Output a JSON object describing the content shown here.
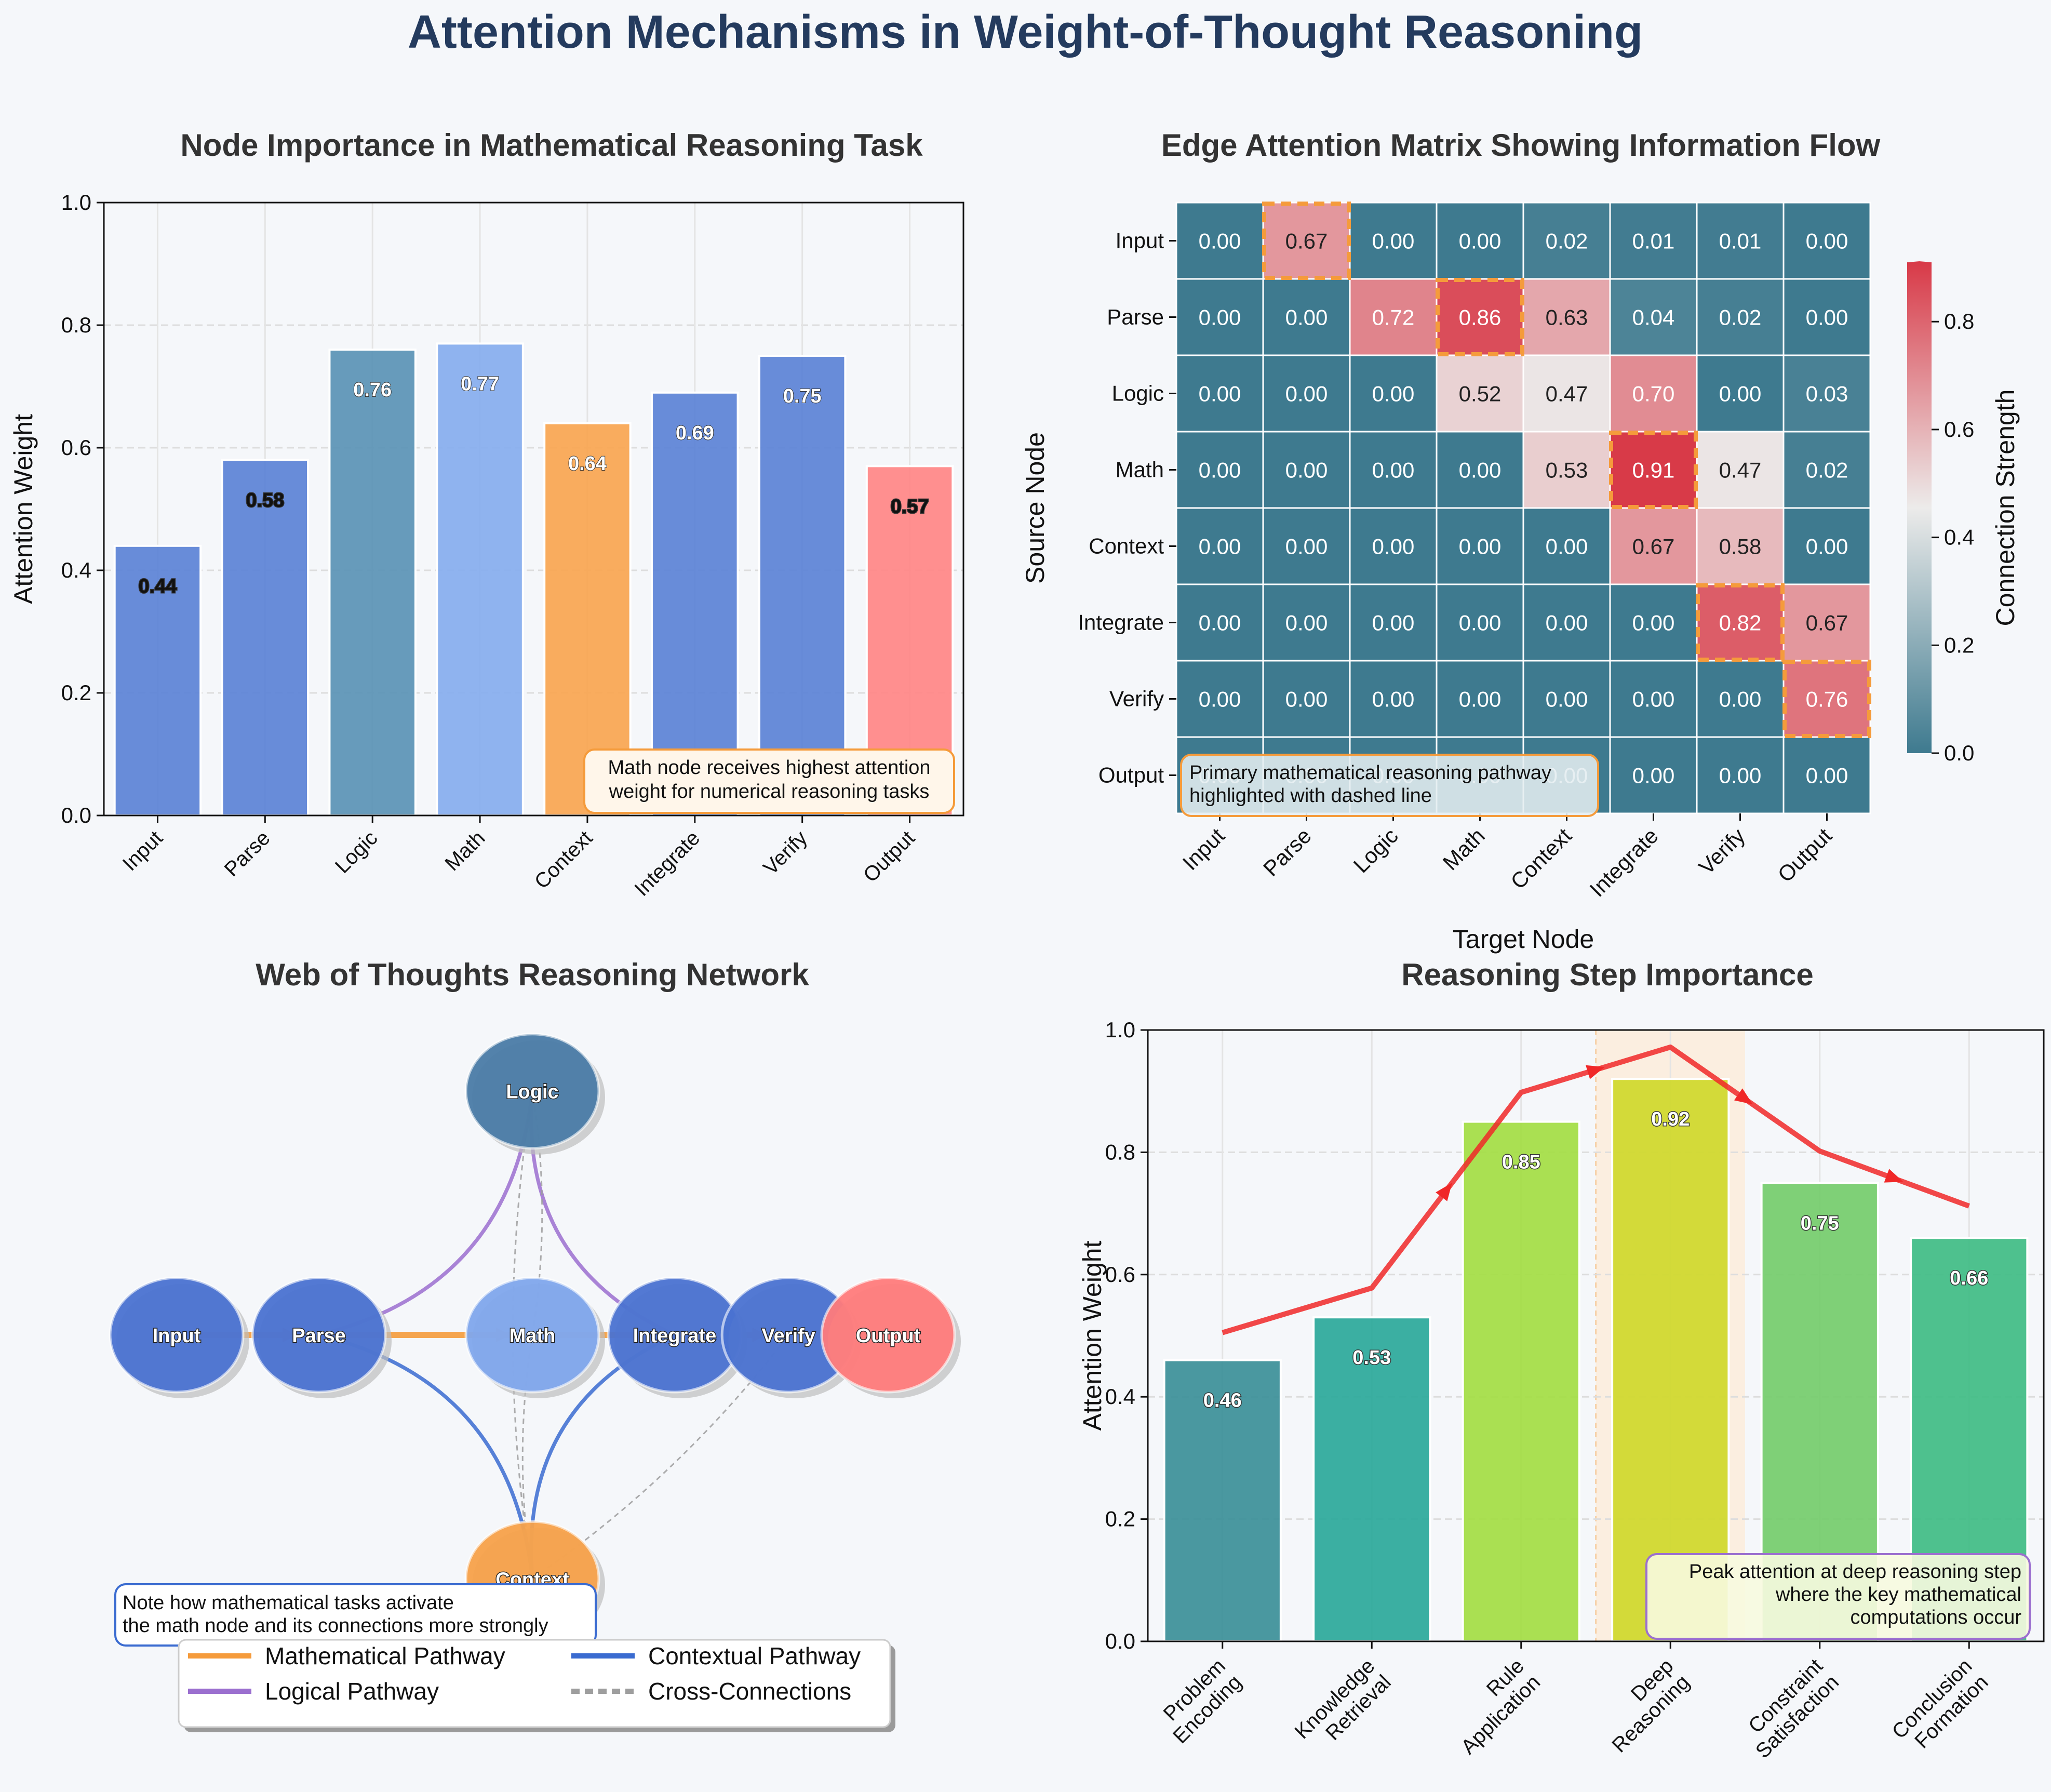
{
  "suptitle": "Attention Mechanisms in Weight-of-Thought Reasoning",
  "colors": {
    "title": "#243b5e",
    "subtitle": "#333333",
    "logic_node": "#4a7ba6",
    "math_node": "#7fa7ec",
    "context_node": "#f7a14a",
    "output_node": "#ff7b7b",
    "blue_node": "#4a72d1",
    "math_path": "#f59b3b",
    "logic_path": "#9b6fcf",
    "context_path": "#3a6bd0",
    "cross_path": "#9e9e9e",
    "trend_line": "#f02828",
    "heat_low": "#3e7a8f",
    "heat_mid": "#ecebea",
    "heat_high": "#d83a48",
    "highlight": "#f59b3b"
  },
  "chart_data": [
    {
      "type": "bar",
      "title": "Node Importance in Mathematical Reasoning Task",
      "categories": [
        "Input",
        "Parse",
        "Logic",
        "Math",
        "Context",
        "Integrate",
        "Verify",
        "Output"
      ],
      "values": [
        0.44,
        0.58,
        0.76,
        0.77,
        0.64,
        0.69,
        0.75,
        0.57
      ],
      "value_labels": [
        "0.44",
        "0.58",
        "0.76",
        "0.77",
        "0.64",
        "0.69",
        "0.75",
        "0.57"
      ],
      "colors": [
        "#5b82d6",
        "#5b82d6",
        "#5a92b5",
        "#86adee",
        "#f9a550",
        "#5b82d6",
        "#5b82d6",
        "#ff8585"
      ],
      "ylabel": "Attention Weight",
      "ylim": [
        0,
        1.0
      ],
      "yticks": [
        "0.0",
        "0.2",
        "0.4",
        "0.6",
        "0.8",
        "1.0"
      ],
      "annotation": "Math node receives highest attention\nweight for numerical reasoning tasks",
      "grid": true
    },
    {
      "type": "heatmap",
      "title": "Edge Attention Matrix Showing Information Flow",
      "xlabel": "Target Node",
      "ylabel": "Source Node",
      "rows": [
        "Input",
        "Parse",
        "Logic",
        "Math",
        "Context",
        "Integrate",
        "Verify",
        "Output"
      ],
      "cols": [
        "Input",
        "Parse",
        "Logic",
        "Math",
        "Context",
        "Integrate",
        "Verify",
        "Output"
      ],
      "values": [
        [
          0.0,
          0.67,
          0.0,
          0.0,
          0.02,
          0.01,
          0.01,
          0.0
        ],
        [
          0.0,
          0.0,
          0.72,
          0.86,
          0.63,
          0.04,
          0.02,
          0.0
        ],
        [
          0.0,
          0.0,
          0.0,
          0.52,
          0.47,
          0.7,
          0.0,
          0.03
        ],
        [
          0.0,
          0.0,
          0.0,
          0.0,
          0.53,
          0.91,
          0.47,
          0.02
        ],
        [
          0.0,
          0.0,
          0.0,
          0.0,
          0.0,
          0.67,
          0.58,
          0.0
        ],
        [
          0.0,
          0.0,
          0.0,
          0.0,
          0.0,
          0.0,
          0.82,
          0.67
        ],
        [
          0.0,
          0.0,
          0.0,
          0.0,
          0.0,
          0.0,
          0.0,
          0.76
        ],
        [
          0.0,
          0.0,
          0.0,
          0.0,
          0.0,
          0.0,
          0.0,
          0.0
        ]
      ],
      "highlighted_cells": [
        [
          0,
          1
        ],
        [
          1,
          3
        ],
        [
          3,
          5
        ],
        [
          5,
          6
        ],
        [
          6,
          7
        ]
      ],
      "colorbar_label": "Connection Strength",
      "colorbar_range": [
        0,
        0.91
      ],
      "colorbar_ticks": [
        "0.0",
        "0.2",
        "0.4",
        "0.6",
        "0.8"
      ],
      "annotation": "Primary mathematical reasoning pathway\nhighlighted with dashed line"
    },
    {
      "type": "network",
      "title": "Web of Thoughts Reasoning Network",
      "nodes": [
        {
          "name": "Input",
          "x": 0,
          "y": 0,
          "color": "#4a72d1"
        },
        {
          "name": "Parse",
          "x": 1,
          "y": 0,
          "color": "#4a72d1"
        },
        {
          "name": "Logic",
          "x": 2.5,
          "y": 1.3,
          "color": "#4a7ba6"
        },
        {
          "name": "Math",
          "x": 2.5,
          "y": 0,
          "color": "#7fa7ec"
        },
        {
          "name": "Context",
          "x": 2.5,
          "y": -1.3,
          "color": "#f7a14a"
        },
        {
          "name": "Integrate",
          "x": 3.5,
          "y": 0,
          "color": "#4a72d1"
        },
        {
          "name": "Verify",
          "x": 4.3,
          "y": 0,
          "color": "#4a72d1"
        },
        {
          "name": "Output",
          "x": 5,
          "y": 0,
          "color": "#ff7b7b"
        }
      ],
      "edges": [
        {
          "from": "Input",
          "to": "Parse",
          "type": "math"
        },
        {
          "from": "Parse",
          "to": "Math",
          "type": "math"
        },
        {
          "from": "Math",
          "to": "Integrate",
          "type": "math"
        },
        {
          "from": "Integrate",
          "to": "Verify",
          "type": "math"
        },
        {
          "from": "Verify",
          "to": "Output",
          "type": "math"
        },
        {
          "from": "Parse",
          "to": "Logic",
          "type": "logic"
        },
        {
          "from": "Logic",
          "to": "Integrate",
          "type": "logic"
        },
        {
          "from": "Parse",
          "to": "Context",
          "type": "context"
        },
        {
          "from": "Context",
          "to": "Integrate",
          "type": "context"
        },
        {
          "from": "Context",
          "to": "Verify",
          "type": "cross"
        },
        {
          "from": "Logic",
          "to": "Context",
          "type": "cross"
        },
        {
          "from": "Math",
          "to": "Logic",
          "type": "cross"
        },
        {
          "from": "Math",
          "to": "Context",
          "type": "cross"
        }
      ],
      "annotation": "Note how mathematical tasks activate\nthe math node and its connections more strongly",
      "legend": [
        "Mathematical Pathway",
        "Logical Pathway",
        "Contextual Pathway",
        "Cross-Connections"
      ]
    },
    {
      "type": "bar",
      "title": "Reasoning Step Importance",
      "categories": [
        "Problem\nEncoding",
        "Knowledge\nRetrieval",
        "Rule\nApplication",
        "Deep\nReasoning",
        "Constraint\nSatisfaction",
        "Conclusion\nFormation"
      ],
      "values": [
        0.46,
        0.53,
        0.85,
        0.92,
        0.75,
        0.66
      ],
      "value_labels": [
        "0.46",
        "0.53",
        "0.85",
        "0.92",
        "0.75",
        "0.66"
      ],
      "colors": [
        "#3b8f98",
        "#2aa89a",
        "#a3dd43",
        "#cfd82a",
        "#74cc6b",
        "#3fbc84"
      ],
      "trend": [
        0.505,
        0.578,
        0.898,
        0.972,
        0.802,
        0.712
      ],
      "highlight_category": "Deep\nReasoning",
      "ylabel": "Attention Weight",
      "ylim": [
        0,
        1.0
      ],
      "yticks": [
        "0.0",
        "0.2",
        "0.4",
        "0.6",
        "0.8",
        "1.0"
      ],
      "annotation": "Peak attention at deep reasoning step\nwhere the key mathematical\ncomputations occur",
      "grid": true
    }
  ]
}
